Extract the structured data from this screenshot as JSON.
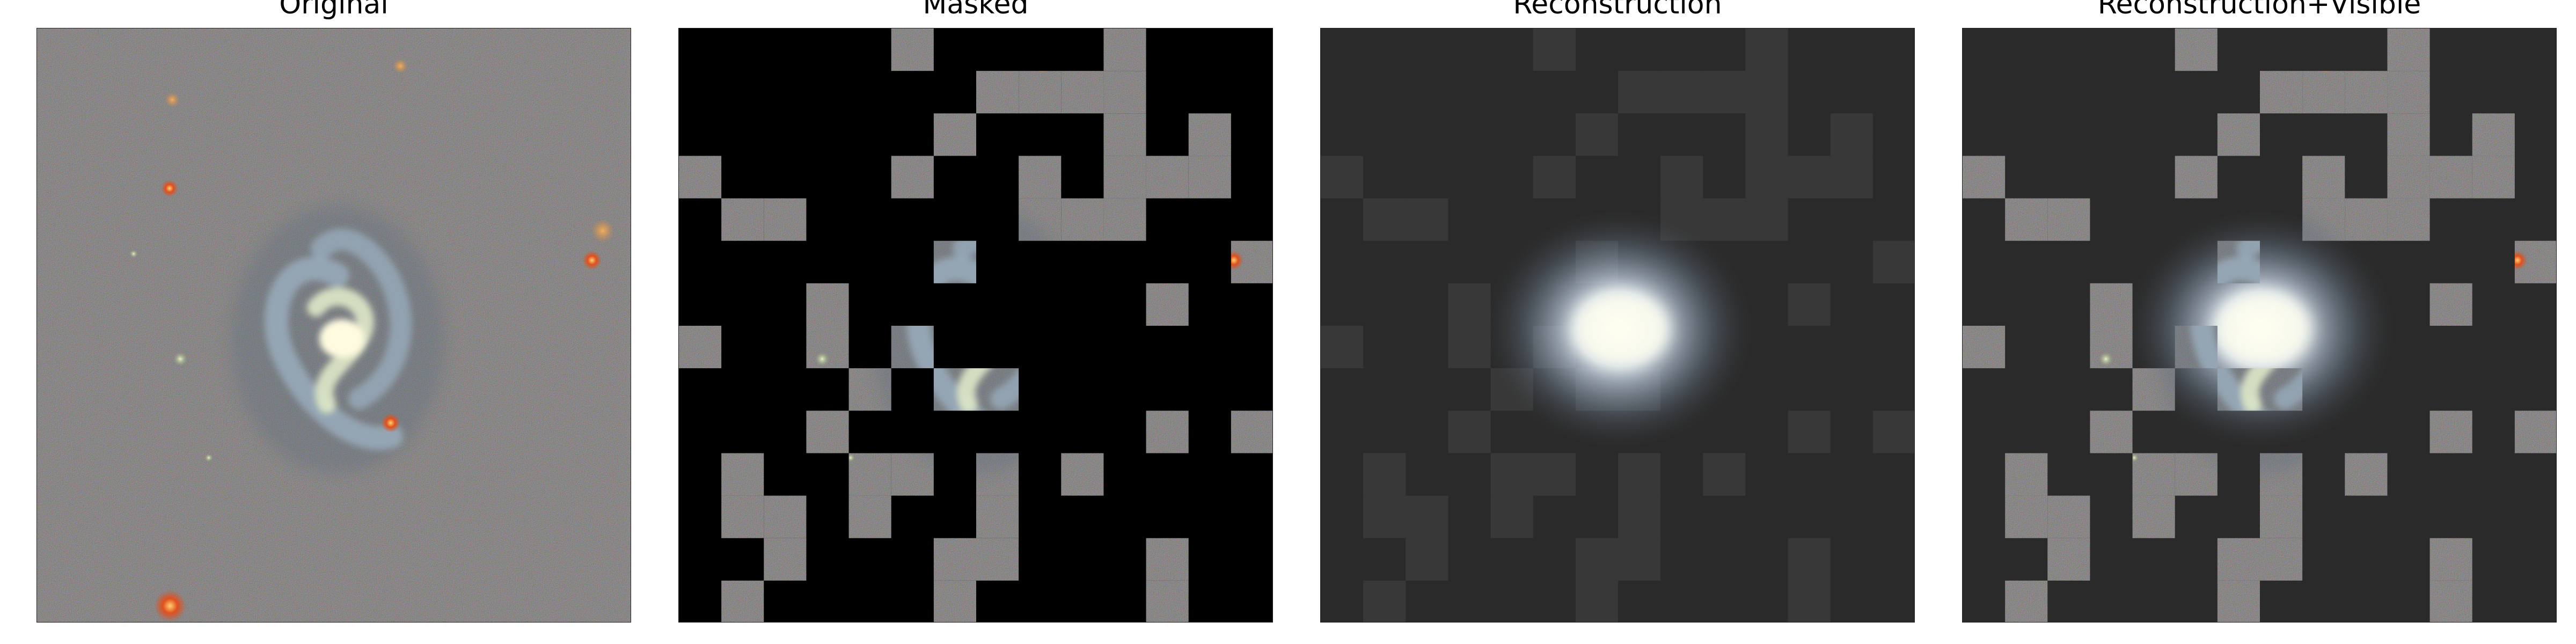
{
  "panels": [
    {
      "title": "Original"
    },
    {
      "title": "Masked"
    },
    {
      "title": "Reconstruction"
    },
    {
      "title": "Reconstruction+Visible"
    }
  ],
  "image": {
    "subject": "barred spiral galaxy",
    "grid": 14,
    "visible_patches": [
      [
        0,
        5
      ],
      [
        0,
        10
      ],
      [
        1,
        7
      ],
      [
        1,
        8
      ],
      [
        1,
        9
      ],
      [
        1,
        10
      ],
      [
        2,
        6
      ],
      [
        2,
        10
      ],
      [
        2,
        12
      ],
      [
        3,
        0
      ],
      [
        3,
        5
      ],
      [
        3,
        8
      ],
      [
        3,
        10
      ],
      [
        3,
        11
      ],
      [
        3,
        12
      ],
      [
        4,
        1
      ],
      [
        4,
        2
      ],
      [
        4,
        8
      ],
      [
        4,
        9
      ],
      [
        4,
        10
      ],
      [
        5,
        6
      ],
      [
        5,
        13
      ],
      [
        6,
        3
      ],
      [
        6,
        11
      ],
      [
        7,
        0
      ],
      [
        7,
        3
      ],
      [
        7,
        5
      ],
      [
        8,
        4
      ],
      [
        8,
        6
      ],
      [
        8,
        7
      ],
      [
        9,
        3
      ],
      [
        9,
        11
      ],
      [
        9,
        13
      ],
      [
        10,
        1
      ],
      [
        10,
        4
      ],
      [
        10,
        5
      ],
      [
        10,
        7
      ],
      [
        10,
        9
      ],
      [
        11,
        1
      ],
      [
        11,
        2
      ],
      [
        11,
        4
      ],
      [
        11,
        7
      ],
      [
        12,
        2
      ],
      [
        12,
        6
      ],
      [
        12,
        7
      ],
      [
        12,
        11
      ],
      [
        13,
        1
      ],
      [
        13,
        6
      ],
      [
        13,
        11
      ]
    ],
    "colors": {
      "sky": "#2b2b2b",
      "masked_bg": "#000000",
      "recon_bg": "#2a2a2a",
      "galaxy_core": "#fffbe0",
      "galaxy_arm": "#9fb7c9",
      "star_red": "#e0501e",
      "star_orange": "#d98a3a"
    }
  }
}
